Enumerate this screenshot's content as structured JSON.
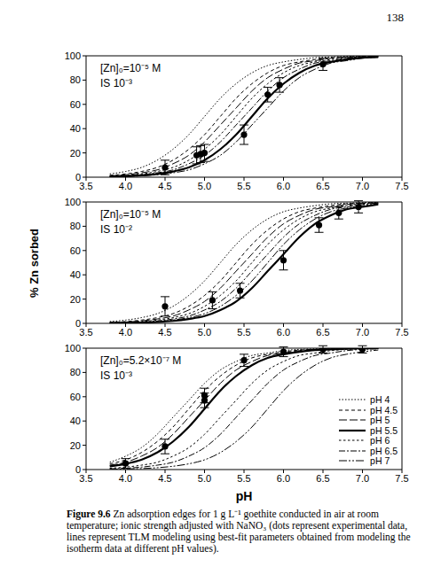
{
  "page_number": "138",
  "x_label": "pH",
  "y_label": "% Zn sorbed",
  "caption_label": "Figure 9.6",
  "caption": "Zn adsorption edges for 1 g L⁻¹ goethite conducted in air at room temperature; ionic strength adjusted with NaNO₃ (dots represent experimental data, lines represent TLM modeling using best-fit parameters obtained from modeling the isotherm data at different pH values).",
  "chart_data": [
    {
      "type": "line",
      "color": "#000000",
      "annotations": [
        "[Zn]₀=10⁻⁵ M",
        "IS 10⁻³"
      ],
      "xlim": [
        3.5,
        7.5
      ],
      "xticks": [
        3.5,
        {
          "value": 4,
          "label": "4.0"
        },
        4.5,
        {
          "value": 5,
          "label": "5.0"
        },
        5.5,
        {
          "value": 6,
          "label": "6.0"
        },
        6.5,
        {
          "value": 7,
          "label": "7.0"
        },
        7.5
      ],
      "ylim": [
        0,
        100
      ],
      "yticks": [
        0,
        20,
        40,
        60,
        80,
        100
      ],
      "x": [
        3.8,
        4.0,
        4.2,
        4.4,
        4.6,
        4.8,
        5.0,
        5.2,
        5.4,
        5.6,
        5.8,
        6.0,
        6.2,
        6.4,
        6.6,
        6.8,
        7.0,
        7.2
      ],
      "series": [
        {
          "name": "pH 4",
          "line_style": "dotted",
          "values": [
            2.7,
            4.7,
            8,
            14,
            23,
            35,
            50,
            65,
            77,
            86,
            92,
            95,
            97,
            98.5,
            99,
            99.5,
            99.8,
            100
          ]
        },
        {
          "name": "pH 4.5",
          "line_style": "dashed",
          "values": [
            1.5,
            2.7,
            4.7,
            8,
            14,
            23,
            35,
            50,
            65,
            77,
            86,
            92,
            95,
            97,
            98.5,
            99,
            99.5,
            99.8
          ]
        },
        {
          "name": "pH 5",
          "line_style": "longdash",
          "values": [
            1.1,
            2,
            3.6,
            6,
            11,
            18,
            29,
            43,
            57,
            71,
            82,
            89,
            94,
            96,
            98,
            99,
            99.4,
            99.7
          ]
        },
        {
          "name": "pH 5.5",
          "line_style": "solid",
          "values": [
            0.5,
            0.8,
            1.5,
            2.7,
            4.7,
            8,
            14,
            23,
            35,
            50,
            65,
            77,
            86,
            92,
            95,
            97,
            98.5,
            99
          ]
        },
        {
          "name": "pH 6",
          "line_style": "shortdash",
          "values": [
            0.8,
            1.5,
            2.7,
            4.7,
            8,
            14,
            23,
            35,
            50,
            65,
            77,
            86,
            92,
            95,
            97,
            98.5,
            99,
            99.5
          ]
        },
        {
          "name": "pH 6.5",
          "line_style": "dashdot",
          "values": [
            0.6,
            1.1,
            2,
            3.6,
            6,
            11,
            18,
            29,
            43,
            57,
            71,
            82,
            89,
            94,
            96,
            98,
            99,
            99.4
          ]
        },
        {
          "name": "pH 7",
          "line_style": "dashdotdot",
          "values": [
            0.3,
            0.6,
            1.1,
            2,
            3.6,
            6,
            11,
            18,
            29,
            43,
            57,
            71,
            82,
            89,
            94,
            96,
            98,
            99
          ]
        }
      ],
      "points": {
        "marker": "circle",
        "x": [
          4.5,
          4.9,
          4.95,
          5.0,
          5.5,
          5.8,
          5.95,
          6.5
        ],
        "values": [
          8,
          18,
          19,
          20,
          35,
          68,
          76,
          93
        ],
        "errors": [
          6,
          7,
          7,
          7,
          8,
          6,
          6,
          5
        ]
      }
    },
    {
      "type": "line",
      "color": "#000000",
      "annotations": [
        "[Zn]₀=10⁻⁵ M",
        "IS 10⁻²"
      ],
      "xlim": [
        3.5,
        7.5
      ],
      "xticks": [
        3.5,
        {
          "value": 4,
          "label": "4.0"
        },
        4.5,
        {
          "value": 5,
          "label": "5.0"
        },
        5.5,
        {
          "value": 6,
          "label": "6.0"
        },
        6.5,
        {
          "value": 7,
          "label": "7.0"
        },
        7.5
      ],
      "ylim": [
        0,
        100
      ],
      "yticks": [
        0,
        20,
        40,
        60,
        80,
        100
      ],
      "x": [
        3.8,
        4.0,
        4.2,
        4.4,
        4.6,
        4.8,
        5.0,
        5.2,
        5.4,
        5.6,
        5.8,
        6.0,
        6.2,
        6.4,
        6.6,
        6.8,
        7.0,
        7.2
      ],
      "series": [
        {
          "name": "pH 4",
          "line_style": "dotted",
          "values": [
            1.5,
            2.7,
            4.7,
            8,
            14,
            23,
            35,
            50,
            65,
            77,
            86,
            92,
            95,
            97,
            98.5,
            99,
            99.5,
            99.8
          ]
        },
        {
          "name": "pH 4.5",
          "line_style": "dashed",
          "values": [
            0.8,
            1.5,
            2.7,
            4.7,
            8,
            14,
            23,
            35,
            50,
            65,
            77,
            86,
            92,
            95,
            97,
            98.5,
            99,
            99.5
          ]
        },
        {
          "name": "pH 5",
          "line_style": "longdash",
          "values": [
            0.6,
            1.1,
            2,
            3.6,
            6,
            11,
            18,
            29,
            43,
            57,
            71,
            82,
            89,
            94,
            96,
            98,
            99,
            99.4
          ]
        },
        {
          "name": "pH 5.5",
          "line_style": "solid",
          "values": [
            0.2,
            0.3,
            0.6,
            1.1,
            2,
            3.6,
            6,
            11,
            18,
            29,
            43,
            57,
            71,
            82,
            89,
            94,
            96,
            98
          ]
        },
        {
          "name": "pH 6",
          "line_style": "shortdash",
          "values": [
            0.5,
            0.8,
            1.5,
            2.7,
            4.7,
            8,
            14,
            23,
            35,
            50,
            65,
            77,
            86,
            92,
            95,
            97,
            98.5,
            99
          ]
        },
        {
          "name": "pH 6.5",
          "line_style": "dashdot",
          "values": [
            0.3,
            0.6,
            1.1,
            2,
            3.6,
            6,
            11,
            18,
            29,
            43,
            57,
            71,
            82,
            89,
            94,
            96,
            98,
            99
          ]
        },
        {
          "name": "pH 7",
          "line_style": "dashdotdot",
          "values": [
            0.2,
            0.5,
            0.8,
            1.5,
            2.7,
            4.7,
            8,
            14,
            23,
            35,
            50,
            65,
            77,
            86,
            92,
            95,
            97,
            98.5
          ]
        }
      ],
      "points": {
        "marker": "circle",
        "x": [
          4.5,
          5.1,
          5.45,
          6.0,
          6.45,
          6.7,
          6.95
        ],
        "values": [
          14,
          19,
          27,
          52,
          81,
          91,
          96
        ],
        "errors": [
          8,
          7,
          6,
          8,
          6,
          5,
          5
        ]
      }
    },
    {
      "type": "line",
      "color": "#000000",
      "annotations": [
        "[Zn]₀=5.2×10⁻⁷ M",
        "IS 10⁻³"
      ],
      "legend": "lower right",
      "xlim": [
        3.5,
        7.5
      ],
      "xticks": [
        3.5,
        {
          "value": 4,
          "label": "4.0"
        },
        4.5,
        {
          "value": 5,
          "label": "5.0"
        },
        5.5,
        {
          "value": 6,
          "label": "6.0"
        },
        6.5,
        {
          "value": 7,
          "label": "7.0"
        },
        7.5
      ],
      "ylim": [
        0,
        100
      ],
      "yticks": [
        0,
        20,
        40,
        60,
        80,
        100
      ],
      "x": [
        3.8,
        4.0,
        4.2,
        4.4,
        4.6,
        4.8,
        5.0,
        5.2,
        5.4,
        5.6,
        5.8,
        6.0,
        6.2,
        6.4,
        6.6,
        6.8,
        7.0,
        7.2
      ],
      "series": [
        {
          "name": "pH 4",
          "line_style": "dotted",
          "values": [
            6,
            11,
            18,
            29,
            43,
            57,
            71,
            82,
            89,
            94,
            96,
            98,
            99,
            99.4,
            99.7,
            100,
            100,
            100
          ]
        },
        {
          "name": "pH 4.5",
          "line_style": "dashed",
          "values": [
            4.7,
            8,
            14,
            23,
            35,
            50,
            65,
            77,
            86,
            92,
            95,
            97,
            98.5,
            99,
            99.5,
            99.8,
            100,
            100
          ]
        },
        {
          "name": "pH 5",
          "line_style": "longdash",
          "values": [
            3.6,
            6,
            11,
            18,
            29,
            43,
            57,
            71,
            82,
            89,
            94,
            96,
            98,
            99,
            99.4,
            99.7,
            100,
            100
          ]
        },
        {
          "name": "pH 5.5",
          "line_style": "solid",
          "values": [
            2.7,
            4.7,
            8,
            14,
            23,
            35,
            50,
            65,
            77,
            86,
            92,
            95,
            97,
            98.5,
            99,
            99.5,
            99.8,
            100
          ]
        },
        {
          "name": "pH 6",
          "line_style": "shortdash",
          "values": [
            1.1,
            2,
            3.6,
            6,
            11,
            18,
            29,
            43,
            57,
            71,
            82,
            89,
            94,
            96,
            98,
            99,
            99.4,
            99.7
          ]
        },
        {
          "name": "pH 6.5",
          "line_style": "dashdot",
          "values": [
            0.6,
            1.1,
            2,
            3.6,
            6,
            11,
            18,
            29,
            43,
            57,
            71,
            82,
            89,
            94,
            96,
            98,
            99,
            99.4
          ]
        },
        {
          "name": "pH 7",
          "line_style": "dashdotdot",
          "values": [
            0.2,
            0.5,
            0.8,
            1.5,
            2.7,
            4.7,
            8,
            14,
            23,
            35,
            50,
            65,
            77,
            86,
            92,
            95,
            97,
            98.5
          ]
        }
      ],
      "points": {
        "marker": "circle",
        "x": [
          4.0,
          4.5,
          5.0,
          5.0,
          5.5,
          6.0,
          6.5,
          7.0
        ],
        "values": [
          5,
          19,
          57,
          61,
          90,
          97,
          99,
          99
        ],
        "errors": [
          4,
          6,
          6,
          6,
          5,
          4,
          3,
          3
        ]
      }
    }
  ]
}
